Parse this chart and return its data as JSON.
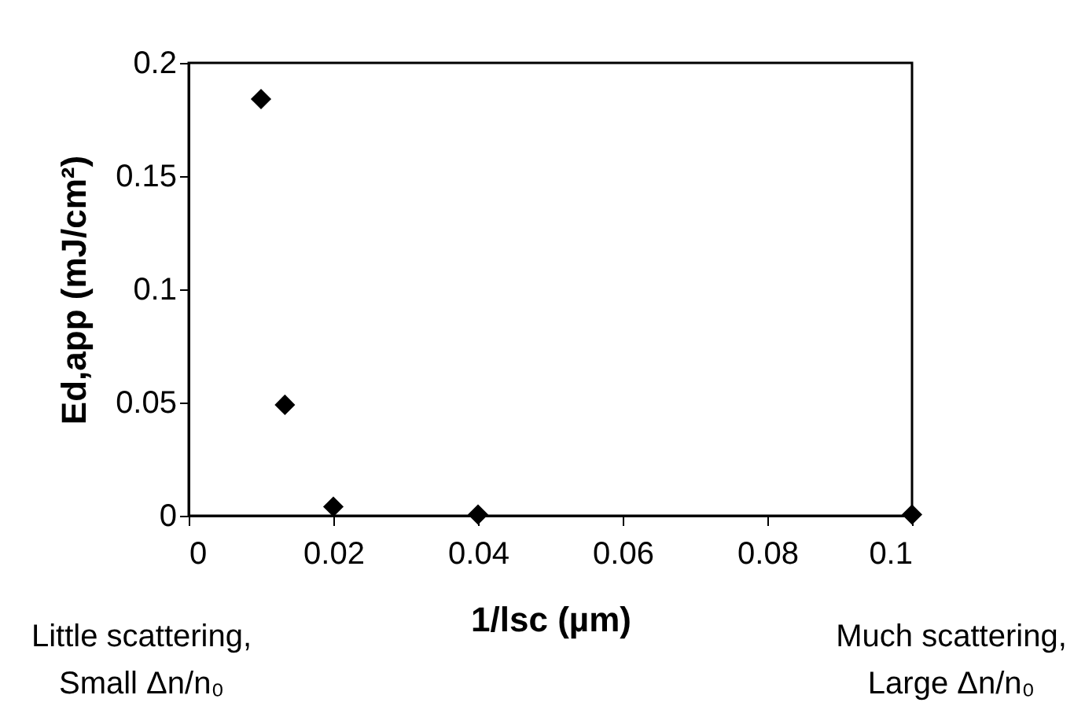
{
  "chart_data": {
    "type": "scatter",
    "xlabel": "1/lsc (µm)",
    "ylabel": "Ed,app (mJ/cm²)",
    "x": [
      0.01,
      0.0133,
      0.02,
      0.04,
      0.1
    ],
    "series": [
      {
        "color": "#000000",
        "values": [
          0.184,
          0.049,
          0.004,
          0.0005,
          0.0005
        ]
      }
    ],
    "xlim": [
      0,
      0.1
    ],
    "xticks": [
      0,
      0.02,
      0.04,
      0.06,
      0.08,
      0.1
    ],
    "ylim": [
      0,
      0.2
    ],
    "yticks": [
      0,
      0.05,
      0.1,
      0.15,
      0.2
    ],
    "grid": false,
    "marker": "diamond",
    "annotations": [
      "Little scattering,\nSmall Δn/n₀",
      "Much scattering,\nLarge Δn/n₀"
    ]
  }
}
